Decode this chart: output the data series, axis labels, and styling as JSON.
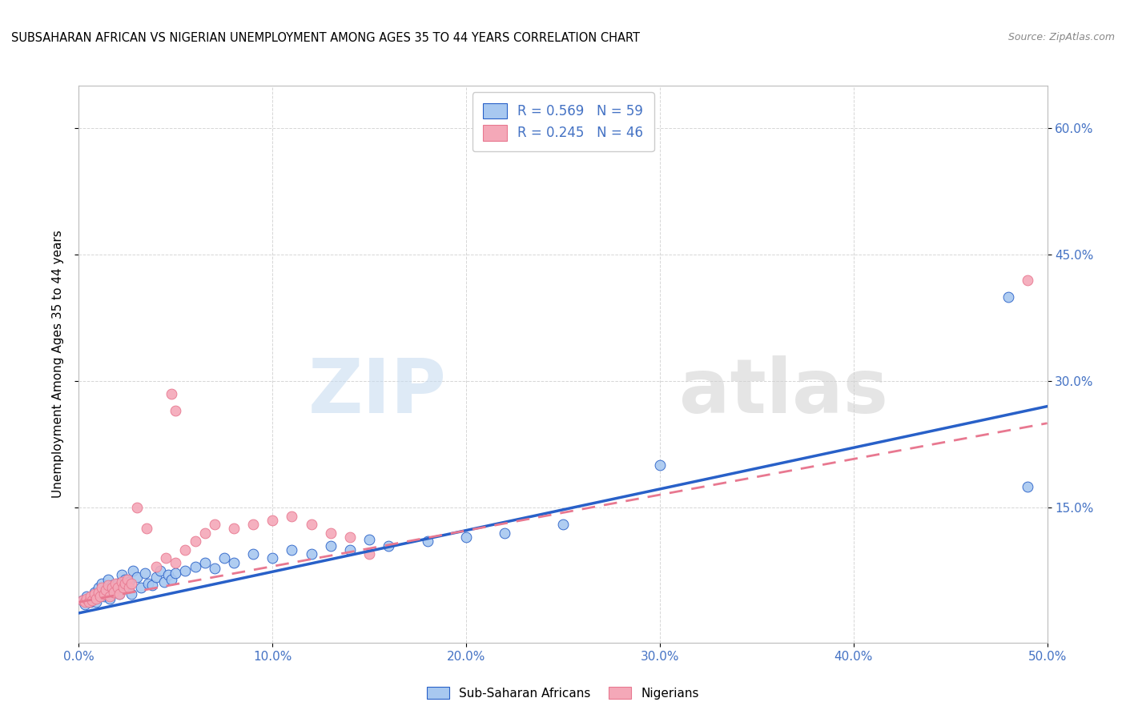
{
  "title": "SUBSAHARAN AFRICAN VS NIGERIAN UNEMPLOYMENT AMONG AGES 35 TO 44 YEARS CORRELATION CHART",
  "source": "Source: ZipAtlas.com",
  "ylabel": "Unemployment Among Ages 35 to 44 years",
  "xlim": [
    0.0,
    0.5
  ],
  "ylim": [
    -0.01,
    0.65
  ],
  "xticks": [
    0.0,
    0.1,
    0.2,
    0.3,
    0.4,
    0.5
  ],
  "xticklabels": [
    "0.0%",
    "10.0%",
    "20.0%",
    "30.0%",
    "40.0%",
    "50.0%"
  ],
  "yticks": [
    0.15,
    0.3,
    0.45,
    0.6
  ],
  "yticklabels": [
    "15.0%",
    "30.0%",
    "45.0%",
    "60.0%"
  ],
  "color_blue": "#A8C8F0",
  "color_pink": "#F4A8B8",
  "line_blue": "#2860C8",
  "line_pink": "#E87890",
  "watermark_zip": "ZIP",
  "watermark_atlas": "atlas",
  "legend_label1": "Sub-Saharan Africans",
  "legend_label2": "Nigerians",
  "bg_color": "#FFFFFF",
  "axis_tick_color": "#4472C4",
  "grid_color": "#CCCCCC",
  "blue_scatter_x": [
    0.002,
    0.003,
    0.004,
    0.005,
    0.006,
    0.007,
    0.008,
    0.009,
    0.01,
    0.011,
    0.012,
    0.013,
    0.014,
    0.015,
    0.016,
    0.017,
    0.018,
    0.019,
    0.02,
    0.021,
    0.022,
    0.023,
    0.024,
    0.025,
    0.026,
    0.027,
    0.028,
    0.03,
    0.032,
    0.034,
    0.036,
    0.038,
    0.04,
    0.042,
    0.044,
    0.046,
    0.048,
    0.05,
    0.055,
    0.06,
    0.065,
    0.07,
    0.075,
    0.08,
    0.09,
    0.1,
    0.11,
    0.12,
    0.13,
    0.14,
    0.15,
    0.16,
    0.18,
    0.2,
    0.22,
    0.25,
    0.3,
    0.48,
    0.49
  ],
  "blue_scatter_y": [
    0.04,
    0.035,
    0.045,
    0.04,
    0.038,
    0.042,
    0.05,
    0.038,
    0.055,
    0.048,
    0.06,
    0.045,
    0.052,
    0.065,
    0.042,
    0.058,
    0.05,
    0.055,
    0.06,
    0.048,
    0.07,
    0.055,
    0.065,
    0.058,
    0.062,
    0.048,
    0.075,
    0.068,
    0.055,
    0.072,
    0.06,
    0.058,
    0.068,
    0.075,
    0.062,
    0.07,
    0.065,
    0.072,
    0.075,
    0.08,
    0.085,
    0.078,
    0.09,
    0.085,
    0.095,
    0.09,
    0.1,
    0.095,
    0.105,
    0.1,
    0.112,
    0.105,
    0.11,
    0.115,
    0.12,
    0.13,
    0.2,
    0.4,
    0.175
  ],
  "pink_scatter_x": [
    0.002,
    0.003,
    0.004,
    0.005,
    0.006,
    0.007,
    0.008,
    0.009,
    0.01,
    0.011,
    0.012,
    0.013,
    0.014,
    0.015,
    0.016,
    0.017,
    0.018,
    0.019,
    0.02,
    0.021,
    0.022,
    0.023,
    0.024,
    0.025,
    0.026,
    0.027,
    0.03,
    0.035,
    0.04,
    0.045,
    0.05,
    0.055,
    0.06,
    0.065,
    0.07,
    0.08,
    0.09,
    0.1,
    0.11,
    0.12,
    0.13,
    0.14,
    0.15,
    0.048,
    0.05,
    0.49
  ],
  "pink_scatter_y": [
    0.04,
    0.038,
    0.042,
    0.038,
    0.045,
    0.04,
    0.048,
    0.042,
    0.05,
    0.045,
    0.055,
    0.048,
    0.052,
    0.058,
    0.045,
    0.055,
    0.05,
    0.06,
    0.055,
    0.048,
    0.062,
    0.055,
    0.06,
    0.065,
    0.055,
    0.06,
    0.15,
    0.125,
    0.08,
    0.09,
    0.085,
    0.1,
    0.11,
    0.12,
    0.13,
    0.125,
    0.13,
    0.135,
    0.14,
    0.13,
    0.12,
    0.115,
    0.095,
    0.285,
    0.265,
    0.42
  ],
  "blue_line_start_x": 0.0,
  "blue_line_start_y": 0.025,
  "blue_line_end_x": 0.5,
  "blue_line_end_y": 0.27,
  "pink_line_start_x": 0.0,
  "pink_line_start_y": 0.038,
  "pink_line_end_x": 0.5,
  "pink_line_end_y": 0.25
}
